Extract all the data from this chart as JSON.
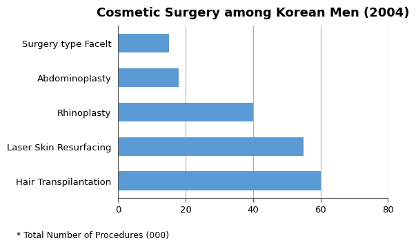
{
  "title": "Cosmetic Surgery among Korean Men (2004)",
  "categories": [
    "Hair Transpilantation",
    "Laser Skin Resurfacing",
    "Rhinoplasty",
    "Abdominoplasty",
    "Surgery type Facelt"
  ],
  "values": [
    60,
    55,
    40,
    18,
    15
  ],
  "bar_color": "#5b9bd5",
  "xlim": [
    0,
    80
  ],
  "xticks": [
    0,
    20,
    40,
    60,
    80
  ],
  "footnote": "* Total Number of Procedures (000)",
  "background_color": "#ffffff",
  "grid_color": "#b0b0b0",
  "title_fontsize": 13,
  "label_fontsize": 9.5,
  "footnote_fontsize": 9
}
